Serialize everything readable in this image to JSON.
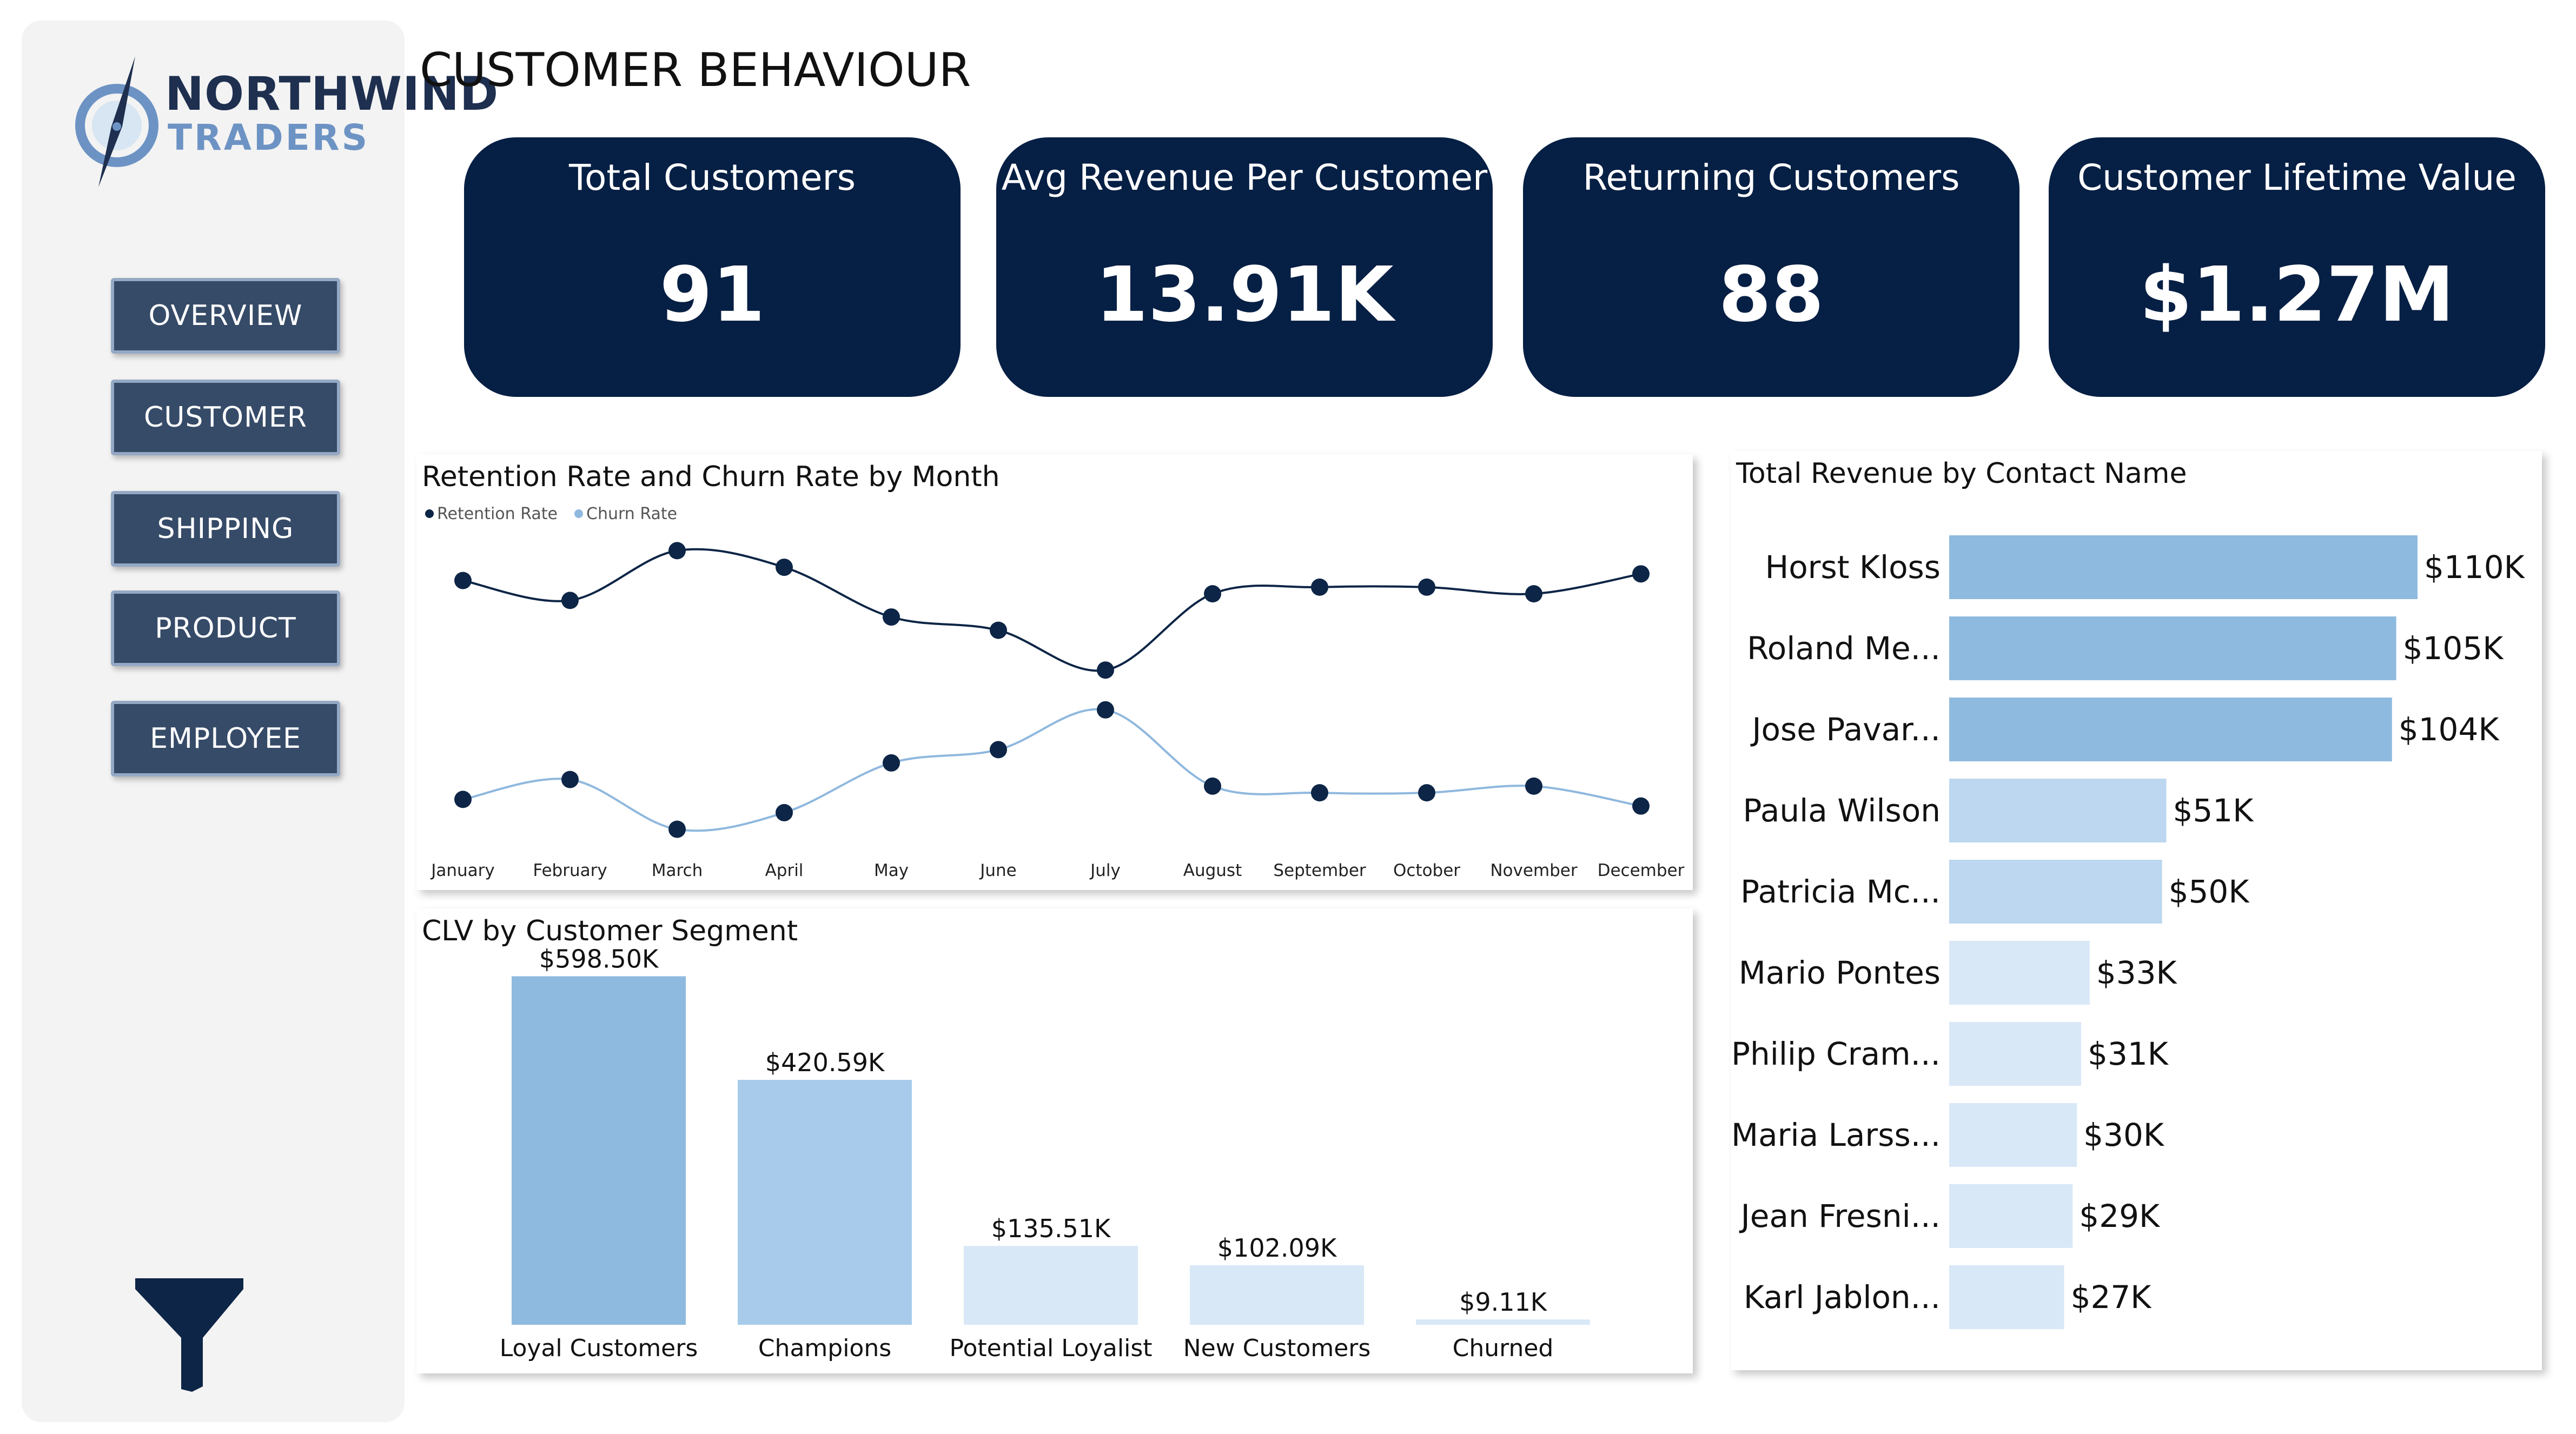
{
  "brand": {
    "line1": "NORTHWIND",
    "line2": "TRADERS"
  },
  "nav": [
    {
      "label": "OVERVIEW"
    },
    {
      "label": "CUSTOMER"
    },
    {
      "label": "SHIPPING"
    },
    {
      "label": "PRODUCT"
    },
    {
      "label": "EMPLOYEE"
    }
  ],
  "page_title": "CUSTOMER BEHAVIOUR",
  "kpis": [
    {
      "label": "Total Customers",
      "value": "91"
    },
    {
      "label": "Avg Revenue Per Customer",
      "value": "13.91K"
    },
    {
      "label": "Returning Customers",
      "value": "88"
    },
    {
      "label": "Customer Lifetime Value",
      "value": "$1.27M"
    }
  ],
  "colors": {
    "navy": "#061f44",
    "nav_button": "#364b68",
    "retention": "#0d2546",
    "churn": "#8fb8de",
    "bar_dark": "#8fbadf",
    "bar_mid": "#bcd7ef",
    "bar_light": "#d9e8f7"
  },
  "icons": {
    "filter": "filter-icon",
    "logo": "compass-logo-icon"
  },
  "chart_data": [
    {
      "type": "line",
      "title": "Retention Rate and Churn Rate by Month",
      "legend": "top-left",
      "categories": [
        "January",
        "February",
        "March",
        "April",
        "May",
        "June",
        "July",
        "August",
        "September",
        "October",
        "November",
        "December"
      ],
      "series": [
        {
          "name": "Retention Rate",
          "values": [
            0.83,
            0.77,
            0.92,
            0.87,
            0.72,
            0.68,
            0.56,
            0.79,
            0.81,
            0.81,
            0.79,
            0.85
          ]
        },
        {
          "name": "Churn Rate",
          "values": [
            0.17,
            0.23,
            0.08,
            0.13,
            0.28,
            0.32,
            0.44,
            0.21,
            0.19,
            0.19,
            0.21,
            0.15
          ]
        }
      ],
      "ylim": [
        0.05,
        0.95
      ],
      "grid": false
    },
    {
      "type": "bar",
      "title": "CLV by Customer Segment",
      "categories": [
        "Loyal Customers",
        "Champions",
        "Potential Loyalist",
        "New Customers",
        "Churned"
      ],
      "values": [
        598.5,
        420.59,
        135.51,
        102.09,
        9.11
      ],
      "labels": [
        "$598.50K",
        "$420.59K",
        "$135.51K",
        "$102.09K",
        "$9.11K"
      ],
      "ylim": [
        0,
        650
      ]
    },
    {
      "type": "bar",
      "orientation": "horizontal",
      "title": "Total Revenue by Contact Name",
      "categories": [
        "Horst Kloss",
        "Roland Me...",
        "Jose Pavar...",
        "Paula Wilson",
        "Patricia Mc...",
        "Mario Pontes",
        "Philip Cram...",
        "Maria Larss...",
        "Jean Fresni...",
        "Karl Jablon..."
      ],
      "values": [
        110,
        105,
        104,
        51,
        50,
        33,
        31,
        30,
        29,
        27
      ],
      "labels": [
        "$110K",
        "$105K",
        "$104K",
        "$51K",
        "$50K",
        "$33K",
        "$31K",
        "$30K",
        "$29K",
        "$27K"
      ],
      "xlim": [
        0,
        110
      ]
    }
  ]
}
